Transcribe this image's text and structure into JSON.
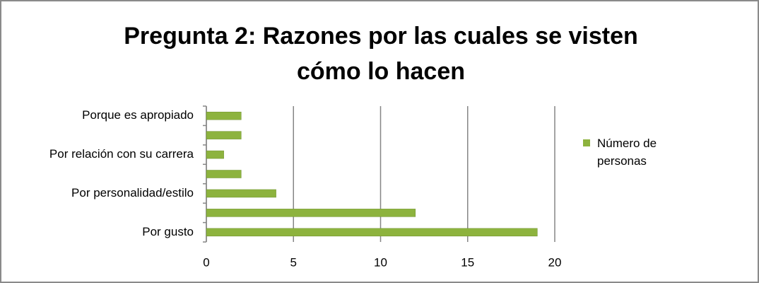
{
  "chart_data": {
    "type": "bar",
    "orientation": "horizontal",
    "title": "Pregunta 2: Razones por las cuales se visten cómo lo hacen",
    "categories": [
      "Por gusto",
      null,
      "Por personalidad/estilo",
      null,
      "Por relación con su carrera",
      null,
      "Porque es apropiado"
    ],
    "series": [
      {
        "name": "Número de personas",
        "color": "#8db33e",
        "values": [
          19,
          12,
          4,
          2,
          1,
          2,
          2
        ]
      }
    ],
    "xlim": [
      0,
      20
    ],
    "xticks": [
      0,
      5,
      10,
      15,
      20
    ],
    "grid": true,
    "legend": "right"
  }
}
